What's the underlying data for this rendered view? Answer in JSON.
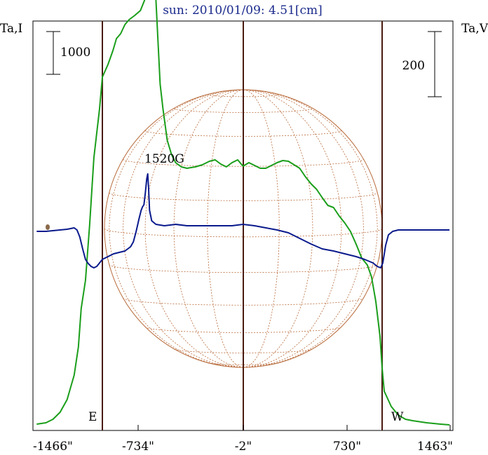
{
  "chart_data": {
    "type": "line",
    "title": "sun: 2010/01/09: 4.51[cm]",
    "left_axis_label": "Ta,I",
    "right_axis_label": "Ta,V",
    "left_scale_bar_label": "1000",
    "right_scale_bar_label": "200",
    "xlim": [
      -1466,
      1463
    ],
    "x_ticks": [
      {
        "value": -1466,
        "label": "-1466\""
      },
      {
        "value": -734,
        "label": "-734\""
      },
      {
        "value": -2,
        "label": "-2\""
      },
      {
        "value": 730,
        "label": "730\""
      },
      {
        "value": 1463,
        "label": "1463\""
      }
    ],
    "limb_markers": [
      {
        "value": -1000,
        "label": "E"
      },
      {
        "value": 985,
        "label": "W"
      }
    ],
    "annotations": [
      {
        "text": "1520G",
        "x": -700
      }
    ],
    "colors": {
      "intensity": "#1a9e1a",
      "polarization": "#0a1a8c",
      "disk_grid": "#b86a3a",
      "vertical_lines": "#4a1a10"
    },
    "series": [
      {
        "key": "I",
        "values": [
          [
            -1466,
            605
          ],
          [
            -1400,
            603
          ],
          [
            -1350,
            598
          ],
          [
            -1300,
            588
          ],
          [
            -1250,
            570
          ],
          [
            -1200,
            535
          ],
          [
            -1170,
            495
          ],
          [
            -1150,
            440
          ],
          [
            -1120,
            400
          ],
          [
            -1090,
            320
          ],
          [
            -1060,
            225
          ],
          [
            -1020,
            155
          ],
          [
            -1000,
            110
          ],
          [
            -960,
            92
          ],
          [
            -925,
            72
          ],
          [
            -900,
            55
          ],
          [
            -870,
            48
          ],
          [
            -840,
            35
          ],
          [
            -810,
            28
          ],
          [
            -770,
            22
          ],
          [
            -730,
            15
          ],
          [
            -700,
            0
          ],
          [
            -690,
            -8
          ],
          [
            -670,
            -35
          ],
          [
            -650,
            -40
          ],
          [
            -635,
            -25
          ],
          [
            -620,
            0
          ],
          [
            -590,
            120
          ],
          [
            -570,
            155
          ],
          [
            -540,
            200
          ],
          [
            -510,
            220
          ],
          [
            -480,
            232
          ],
          [
            -440,
            238
          ],
          [
            -400,
            240
          ],
          [
            -340,
            238
          ],
          [
            -290,
            235
          ],
          [
            -240,
            230
          ],
          [
            -200,
            228
          ],
          [
            -160,
            234
          ],
          [
            -120,
            238
          ],
          [
            -80,
            232
          ],
          [
            -40,
            228
          ],
          [
            -2,
            237
          ],
          [
            40,
            232
          ],
          [
            80,
            236
          ],
          [
            120,
            240
          ],
          [
            160,
            240
          ],
          [
            200,
            236
          ],
          [
            240,
            232
          ],
          [
            280,
            229
          ],
          [
            320,
            230
          ],
          [
            360,
            235
          ],
          [
            400,
            240
          ],
          [
            440,
            252
          ],
          [
            480,
            262
          ],
          [
            520,
            270
          ],
          [
            560,
            282
          ],
          [
            600,
            293
          ],
          [
            640,
            296
          ],
          [
            680,
            308
          ],
          [
            720,
            318
          ],
          [
            760,
            330
          ],
          [
            800,
            348
          ],
          [
            840,
            368
          ],
          [
            880,
            378
          ],
          [
            910,
            395
          ],
          [
            940,
            430
          ],
          [
            970,
            480
          ],
          [
            985,
            525
          ],
          [
            1000,
            558
          ],
          [
            1050,
            580
          ],
          [
            1100,
            592
          ],
          [
            1150,
            598
          ],
          [
            1200,
            600
          ],
          [
            1300,
            603
          ],
          [
            1400,
            605
          ],
          [
            1463,
            606
          ]
        ]
      },
      {
        "key": "V",
        "values": [
          [
            -1466,
            330
          ],
          [
            -1400,
            330
          ],
          [
            -1300,
            328
          ],
          [
            -1250,
            327
          ],
          [
            -1200,
            325
          ],
          [
            -1180,
            328
          ],
          [
            -1160,
            338
          ],
          [
            -1140,
            355
          ],
          [
            -1120,
            370
          ],
          [
            -1100,
            376
          ],
          [
            -1080,
            380
          ],
          [
            -1060,
            382
          ],
          [
            -1040,
            380
          ],
          [
            -1020,
            375
          ],
          [
            -1000,
            370
          ],
          [
            -960,
            366
          ],
          [
            -920,
            362
          ],
          [
            -880,
            360
          ],
          [
            -840,
            358
          ],
          [
            -800,
            352
          ],
          [
            -780,
            345
          ],
          [
            -760,
            330
          ],
          [
            -740,
            312
          ],
          [
            -725,
            300
          ],
          [
            -715,
            295
          ],
          [
            -705,
            292
          ],
          [
            -695,
            275
          ],
          [
            -685,
            255
          ],
          [
            -678,
            248
          ],
          [
            -672,
            268
          ],
          [
            -665,
            300
          ],
          [
            -650,
            315
          ],
          [
            -620,
            320
          ],
          [
            -560,
            322
          ],
          [
            -480,
            320
          ],
          [
            -400,
            322
          ],
          [
            -320,
            322
          ],
          [
            -240,
            322
          ],
          [
            -160,
            322
          ],
          [
            -80,
            322
          ],
          [
            -2,
            320
          ],
          [
            80,
            322
          ],
          [
            160,
            325
          ],
          [
            240,
            328
          ],
          [
            320,
            332
          ],
          [
            400,
            340
          ],
          [
            480,
            348
          ],
          [
            560,
            355
          ],
          [
            640,
            358
          ],
          [
            720,
            362
          ],
          [
            800,
            366
          ],
          [
            860,
            370
          ],
          [
            920,
            375
          ],
          [
            950,
            380
          ],
          [
            975,
            382
          ],
          [
            990,
            375
          ],
          [
            1010,
            350
          ],
          [
            1030,
            335
          ],
          [
            1060,
            330
          ],
          [
            1100,
            328
          ],
          [
            1200,
            328
          ],
          [
            1300,
            328
          ],
          [
            1463,
            328
          ]
        ]
      }
    ]
  }
}
